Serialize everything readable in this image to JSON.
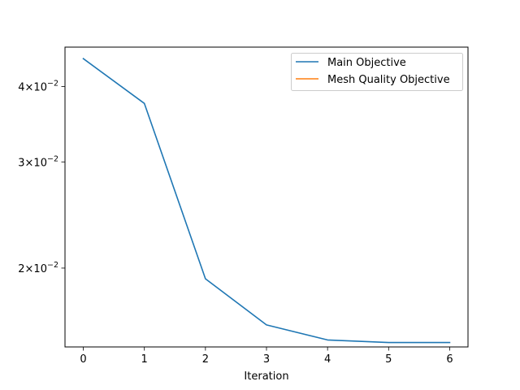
{
  "chart_data": {
    "type": "line",
    "xlabel": "Iteration",
    "ylabel": "",
    "yscale": "log",
    "xlim": [
      -0.3,
      6.3
    ],
    "ylim": [
      0.0148,
      0.0465
    ],
    "x_ticks": [
      0,
      1,
      2,
      3,
      4,
      5,
      6
    ],
    "x_tick_labels": [
      "0",
      "1",
      "2",
      "3",
      "4",
      "5",
      "6"
    ],
    "y_ticks": [
      0.02,
      0.03,
      0.04
    ],
    "y_tick_labels": [
      {
        "mantissa": "2",
        "times": "×",
        "base": "10",
        "exponent": "−2"
      },
      {
        "mantissa": "3",
        "times": "×",
        "base": "10",
        "exponent": "−2"
      },
      {
        "mantissa": "4",
        "times": "×",
        "base": "10",
        "exponent": "−2"
      }
    ],
    "grid": false,
    "legend_position": "top-right",
    "series": [
      {
        "name": "Main Objective",
        "color": "#1f77b4",
        "x": [
          0,
          1,
          2,
          3,
          4,
          5,
          6
        ],
        "values": [
          0.0445,
          0.0375,
          0.0192,
          0.0161,
          0.0152,
          0.01505,
          0.01505
        ]
      },
      {
        "name": "Mesh Quality Objective",
        "color": "#ff7f0e",
        "x": [],
        "values": []
      }
    ]
  }
}
